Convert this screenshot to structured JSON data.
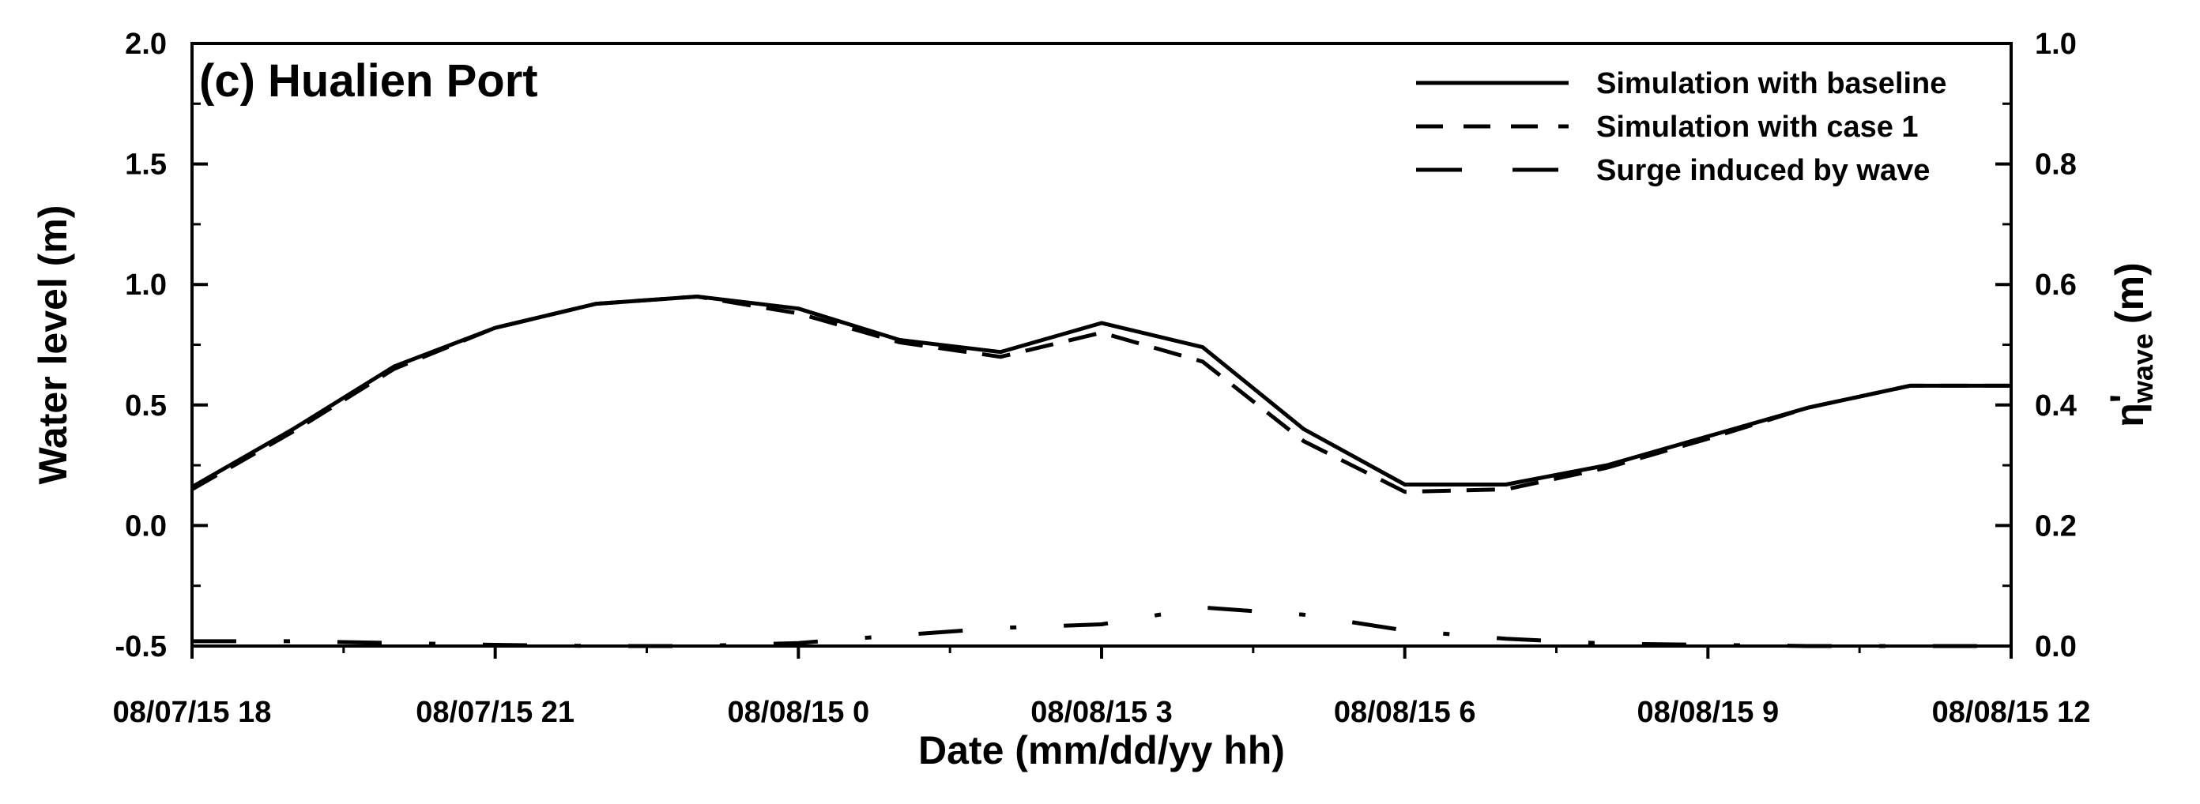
{
  "chart_data": {
    "type": "line",
    "title": "(c) Hualien Port",
    "xlabel": "Date (mm/dd/yy hh)",
    "ylabel": "Water level (m)",
    "y2label": {
      "main": "η",
      "sub": "wave",
      "unit": "(m)"
    },
    "x_tick_labels": [
      "08/07/15 18",
      "08/07/15 21",
      "08/08/15 0",
      "08/08/15 3",
      "08/08/15 6",
      "08/08/15 9",
      "08/08/15 12"
    ],
    "x_tick_values": [
      0,
      3,
      6,
      9,
      12,
      15,
      18
    ],
    "xlim": [
      0,
      18
    ],
    "ylim": [
      -0.5,
      2.0
    ],
    "y_ticks": [
      "-0.5",
      "0.0",
      "0.5",
      "1.0",
      "1.5",
      "2.0"
    ],
    "y2lim": [
      0.0,
      1.0
    ],
    "y2_ticks": [
      "0.0",
      "0.2",
      "0.4",
      "0.6",
      "0.8",
      "1.0"
    ],
    "legend_position": "top-right",
    "series": [
      {
        "name": "Simulation with baseline",
        "style": "solid",
        "axis": "left",
        "x": [
          0,
          1,
          2,
          3,
          4,
          5,
          6,
          7,
          8,
          9,
          10,
          11,
          12,
          13,
          14,
          15,
          16,
          17,
          18
        ],
        "values": [
          0.16,
          0.4,
          0.66,
          0.82,
          0.92,
          0.95,
          0.9,
          0.77,
          0.72,
          0.84,
          0.74,
          0.4,
          0.17,
          0.17,
          0.25,
          0.37,
          0.49,
          0.58,
          0.58
        ]
      },
      {
        "name": "Simulation with case 1",
        "style": "dashed",
        "axis": "left",
        "x": [
          0,
          1,
          2,
          3,
          4,
          5,
          6,
          7,
          8,
          9,
          10,
          11,
          12,
          13,
          14,
          15,
          16,
          17,
          18
        ],
        "values": [
          0.15,
          0.39,
          0.65,
          0.82,
          0.92,
          0.95,
          0.88,
          0.76,
          0.7,
          0.8,
          0.68,
          0.35,
          0.14,
          0.15,
          0.24,
          0.36,
          0.49,
          0.58,
          0.58
        ]
      },
      {
        "name": "Surge induced by wave",
        "style": "dash-dot",
        "axis": "right",
        "x": [
          0,
          1,
          2,
          3,
          4,
          5,
          6,
          7,
          8,
          9,
          10,
          11,
          12,
          13,
          14,
          15,
          16,
          17,
          18
        ],
        "values": [
          0.008,
          0.008,
          0.005,
          0.002,
          0.0,
          0.0,
          0.005,
          0.018,
          0.03,
          0.036,
          0.064,
          0.052,
          0.026,
          0.012,
          0.004,
          0.002,
          0.0,
          0.0,
          0.0
        ]
      }
    ]
  }
}
